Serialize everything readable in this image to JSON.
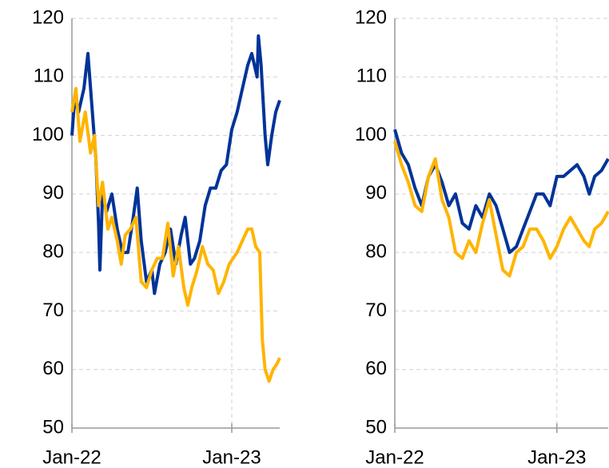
{
  "chart_data": [
    {
      "type": "line",
      "xlim": [
        0,
        15.6
      ],
      "xticks": [
        {
          "value": 0,
          "label": "Jan-22"
        },
        {
          "value": 12,
          "label": "Jan-23"
        }
      ],
      "ylim": [
        50,
        120
      ],
      "yticks": [
        50,
        60,
        70,
        80,
        90,
        100,
        110,
        120
      ],
      "grid": true,
      "series": [
        {
          "color": "#003399",
          "x": [
            0,
            0.2,
            0.5,
            0.9,
            1.2,
            1.5,
            1.8,
            2.0,
            2.1,
            2.3,
            2.6,
            3.0,
            3.4,
            3.8,
            4.2,
            4.6,
            4.9,
            5.2,
            5.6,
            6.0,
            6.2,
            6.6,
            7.0,
            7.4,
            7.8,
            8.2,
            8.5,
            8.9,
            9.2,
            9.6,
            10.0,
            10.4,
            10.8,
            11.2,
            11.6,
            12.0,
            12.4,
            12.8,
            13.2,
            13.5,
            13.9,
            14.0,
            14.2,
            14.5,
            14.7,
            15.0,
            15.3,
            15.6
          ],
          "values": [
            100,
            106,
            104,
            108,
            114,
            105,
            96,
            85,
            77,
            90,
            87,
            90,
            84,
            80,
            80,
            86,
            91,
            82,
            75,
            77,
            73,
            78,
            80,
            84,
            78,
            83,
            86,
            78,
            79,
            82,
            88,
            91,
            91,
            94,
            95,
            101,
            104,
            108,
            112,
            114,
            110,
            117,
            112,
            100,
            95,
            100,
            104,
            106
          ]
        },
        {
          "color": "#ffb400",
          "x": [
            0,
            0.3,
            0.6,
            1.0,
            1.4,
            1.7,
            2.0,
            2.3,
            2.7,
            3.0,
            3.4,
            3.7,
            4.0,
            4.4,
            4.8,
            5.2,
            5.6,
            6.0,
            6.4,
            6.8,
            7.2,
            7.6,
            8.0,
            8.4,
            8.7,
            9.0,
            9.4,
            9.8,
            10.2,
            10.6,
            11.0,
            11.4,
            11.8,
            12.4,
            12.8,
            13.2,
            13.5,
            13.8,
            14.1,
            14.3,
            14.5,
            14.8,
            15.1,
            15.4,
            15.6
          ],
          "values": [
            104,
            108,
            99,
            104,
            97,
            100,
            88,
            92,
            84,
            86,
            82,
            78,
            83,
            84,
            86,
            75,
            74,
            77,
            79,
            79,
            85,
            76,
            81,
            74,
            71,
            74,
            77,
            81,
            78,
            77,
            73,
            75,
            78,
            80,
            82,
            84,
            84,
            81,
            80,
            65,
            60,
            58,
            60,
            61,
            62
          ]
        }
      ]
    },
    {
      "type": "line",
      "xlim": [
        0,
        15.8
      ],
      "xticks": [
        {
          "value": 0,
          "label": "Jan-22"
        },
        {
          "value": 12,
          "label": "Jan-23"
        }
      ],
      "ylim": [
        50,
        120
      ],
      "yticks": [
        50,
        60,
        70,
        80,
        90,
        100,
        110,
        120
      ],
      "grid": true,
      "series": [
        {
          "color": "#003399",
          "x": [
            0,
            0.5,
            1.0,
            1.5,
            2.0,
            2.5,
            3.0,
            3.5,
            4.0,
            4.5,
            5.0,
            5.5,
            6.0,
            6.5,
            7.0,
            7.5,
            8.0,
            8.5,
            9.0,
            9.5,
            10.0,
            10.5,
            11.0,
            11.5,
            12.0,
            12.5,
            13.0,
            13.5,
            14.0,
            14.4,
            14.8,
            15.3,
            15.8
          ],
          "values": [
            101,
            97,
            95,
            91,
            88,
            93,
            95,
            92,
            88,
            90,
            85,
            84,
            88,
            86,
            90,
            88,
            84,
            80,
            81,
            84,
            87,
            90,
            90,
            88,
            93,
            93,
            94,
            95,
            93,
            90,
            93,
            94,
            96
          ]
        },
        {
          "color": "#ffb400",
          "x": [
            0,
            0.5,
            1.0,
            1.5,
            2.0,
            2.5,
            3.0,
            3.5,
            4.0,
            4.5,
            5.0,
            5.5,
            6.0,
            6.5,
            7.0,
            7.5,
            8.0,
            8.5,
            9.0,
            9.5,
            10.0,
            10.5,
            11.0,
            11.5,
            12.0,
            12.5,
            13.0,
            13.5,
            14.0,
            14.4,
            14.8,
            15.3,
            15.8
          ],
          "values": [
            99,
            95,
            92,
            88,
            87,
            93,
            96,
            89,
            86,
            80,
            79,
            82,
            80,
            85,
            89,
            83,
            77,
            76,
            80,
            81,
            84,
            84,
            82,
            79,
            81,
            84,
            86,
            84,
            82,
            81,
            84,
            85,
            87
          ]
        }
      ]
    }
  ]
}
